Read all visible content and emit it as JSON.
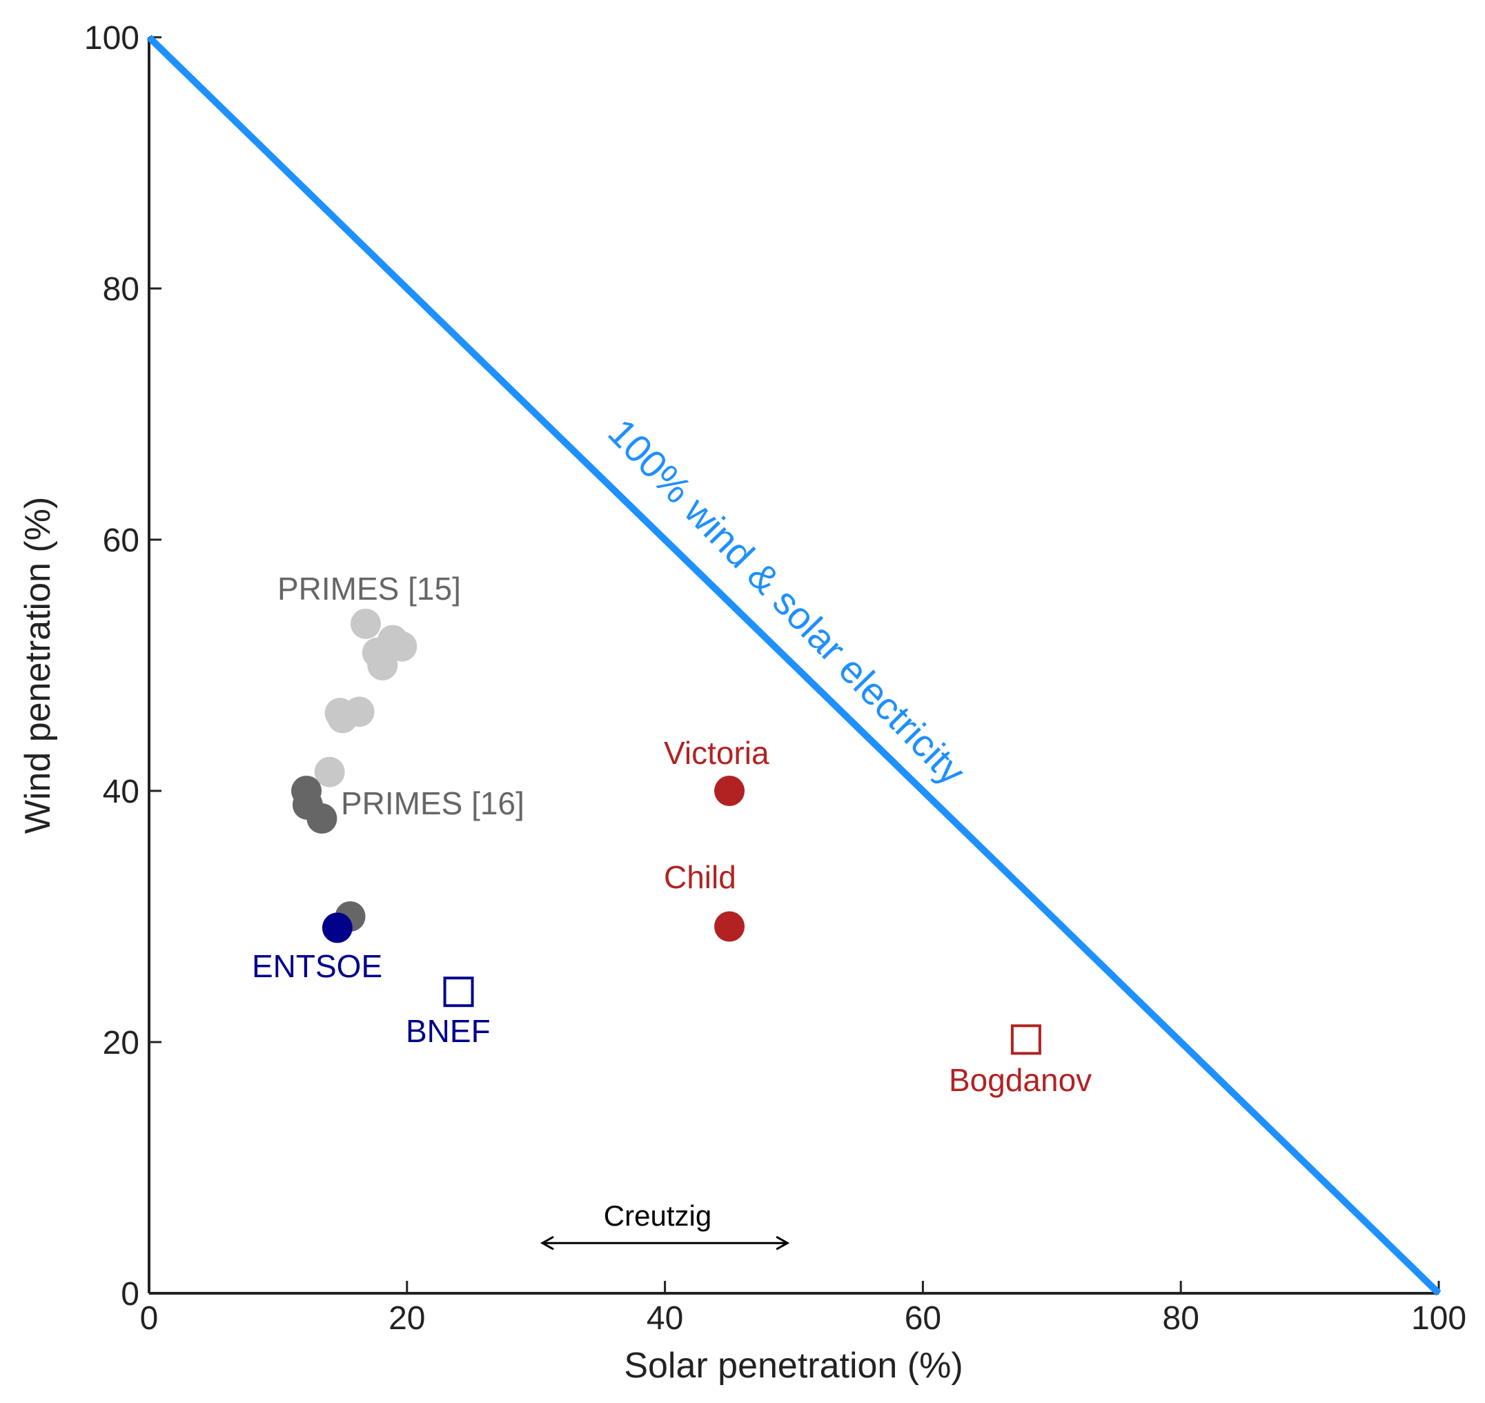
{
  "colors": {
    "axis": "#222222",
    "line": "#1e90ff",
    "primes15": "#c8c8c8",
    "primes16": "#666666",
    "entsoe": "#00008b",
    "bnef": "#00008b",
    "red": "#b22222",
    "creutzig": "#000000"
  },
  "chart_data": {
    "type": "scatter",
    "xlabel": "Solar penetration (%)",
    "ylabel": "Wind penetration (%)",
    "xlim": [
      0,
      100
    ],
    "ylim": [
      0,
      100
    ],
    "x_ticks": [
      0,
      20,
      40,
      60,
      80,
      100
    ],
    "y_ticks": [
      0,
      20,
      40,
      60,
      80,
      100
    ],
    "grid": false,
    "reference_line": {
      "label": "100% wind & solar electricity",
      "points": [
        [
          0,
          100
        ],
        [
          100,
          0
        ]
      ]
    },
    "series": [
      {
        "name": "PRIMES [15]",
        "marker": "circle-filled",
        "color_key": "primes15",
        "points": [
          [
            16.8,
            53.3
          ],
          [
            18.9,
            52.0
          ],
          [
            19.6,
            51.5
          ],
          [
            17.7,
            51.0
          ],
          [
            18.1,
            50.0
          ],
          [
            14.8,
            46.2
          ],
          [
            15.0,
            45.8
          ],
          [
            16.3,
            46.3
          ],
          [
            14.0,
            41.5
          ]
        ]
      },
      {
        "name": "PRIMES [16]",
        "marker": "circle-filled",
        "color_key": "primes16",
        "points": [
          [
            12.2,
            40.0
          ],
          [
            12.3,
            38.9
          ],
          [
            13.4,
            37.8
          ],
          [
            15.6,
            30.0
          ]
        ]
      },
      {
        "name": "ENTSOE",
        "marker": "circle-filled",
        "color_key": "entsoe",
        "points": [
          [
            14.6,
            29.1
          ]
        ]
      },
      {
        "name": "BNEF",
        "marker": "square-open",
        "color_key": "bnef",
        "points": [
          [
            24.0,
            24.0
          ]
        ]
      },
      {
        "name": "Victoria",
        "marker": "circle-filled",
        "color_key": "red",
        "points": [
          [
            45.0,
            40.0
          ]
        ]
      },
      {
        "name": "Child",
        "marker": "circle-filled",
        "color_key": "red",
        "points": [
          [
            45.0,
            29.2
          ]
        ]
      },
      {
        "name": "Bogdanov",
        "marker": "square-open",
        "color_key": "red",
        "points": [
          [
            68.0,
            20.2
          ]
        ]
      }
    ],
    "range_annotation": {
      "label": "Creutzig",
      "x_range": [
        30.5,
        49.5
      ],
      "y": 4
    }
  }
}
